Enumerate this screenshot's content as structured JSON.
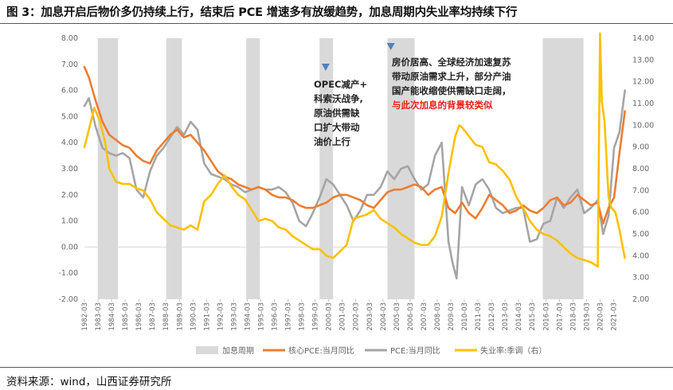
{
  "figure": {
    "title": "图 3：加息开启后物价多仍持续上行，结束后 PCE 增速多有放缓趋势，加息周期内失业率均持续下行",
    "source": "资料来源：wind，山西证券研究所"
  },
  "colors": {
    "hike_band": "#d9d9d9",
    "core_pce": "#ed7d31",
    "pce": "#a5a5a5",
    "unemployment": "#ffc000",
    "marker": "#4f81bd"
  },
  "chart_data": {
    "type": "line",
    "title": "",
    "xlabel": "",
    "ylabel": "",
    "ylim": [
      -2,
      8
    ],
    "y2lim": [
      2,
      14
    ],
    "xlim": [
      1982.17,
      2022.2
    ],
    "y_ticks": [
      "8.00",
      "7.00",
      "6.00",
      "5.00",
      "4.00",
      "3.00",
      "2.00",
      "1.00",
      "0.00",
      "-1.00",
      "-2.00"
    ],
    "y2_ticks": [
      "14.00",
      "13.00",
      "12.00",
      "11.00",
      "10.00",
      "9.00",
      "8.00",
      "7.00",
      "6.00",
      "5.00",
      "4.00",
      "3.00",
      "2.00"
    ],
    "x_ticks": [
      "1982-03",
      "1983-03",
      "1984-03",
      "1985-03",
      "1986-03",
      "1987-03",
      "1988-03",
      "1989-03",
      "1990-03",
      "1991-03",
      "1992-03",
      "1993-03",
      "1994-03",
      "1995-03",
      "1996-03",
      "1997-03",
      "1998-03",
      "1999-03",
      "2000-03",
      "2001-03",
      "2002-03",
      "2003-03",
      "2004-03",
      "2005-03",
      "2006-03",
      "2007-03",
      "2008-03",
      "2009-03",
      "2010-03",
      "2011-03",
      "2012-03",
      "2013-03",
      "2014-03",
      "2015-03",
      "2016-03",
      "2017-03",
      "2018-03",
      "2019-03",
      "2020-03",
      "2021-03"
    ],
    "hike_periods": [
      {
        "start": 1983.15,
        "end": 1984.65
      },
      {
        "start": 1988.2,
        "end": 1989.35
      },
      {
        "start": 1994.1,
        "end": 1995.1
      },
      {
        "start": 1999.5,
        "end": 2000.5
      },
      {
        "start": 2004.5,
        "end": 2006.5
      },
      {
        "start": 2015.95,
        "end": 2018.95
      }
    ],
    "legend": [
      "加息周期",
      "核心PCE:当月同比",
      "PCE:当月同比",
      "失业率:季调（右）"
    ],
    "legend_position": "bottom",
    "series": [
      {
        "name": "核心PCE:当月同比",
        "axis": "left",
        "x": [
          1982.17,
          1982.5,
          1983.0,
          1983.5,
          1984.0,
          1984.5,
          1985.0,
          1985.5,
          1986.0,
          1986.5,
          1987.0,
          1987.5,
          1988.0,
          1988.5,
          1989.0,
          1989.5,
          1990.0,
          1990.5,
          1991.0,
          1991.5,
          1992.0,
          1992.5,
          1993.0,
          1993.5,
          1994.0,
          1994.5,
          1995.0,
          1995.5,
          1996.0,
          1996.5,
          1997.0,
          1997.5,
          1998.0,
          1998.5,
          1999.0,
          1999.5,
          2000.0,
          2000.5,
          2001.0,
          2001.5,
          2002.0,
          2002.5,
          2003.0,
          2003.5,
          2004.0,
          2004.5,
          2005.0,
          2005.5,
          2006.0,
          2006.5,
          2007.0,
          2007.5,
          2008.0,
          2008.5,
          2009.0,
          2009.5,
          2010.0,
          2010.5,
          2011.0,
          2011.5,
          2012.0,
          2012.5,
          2013.0,
          2013.5,
          2014.0,
          2014.5,
          2015.0,
          2015.5,
          2016.0,
          2016.5,
          2017.0,
          2017.5,
          2018.0,
          2018.5,
          2019.0,
          2019.5,
          2020.0,
          2020.4,
          2020.8,
          2021.2,
          2021.6,
          2022.0
        ],
        "values": [
          6.9,
          6.5,
          5.6,
          4.8,
          4.3,
          4.1,
          3.9,
          3.8,
          3.5,
          3.3,
          3.2,
          3.7,
          4.0,
          4.3,
          4.5,
          4.2,
          4.3,
          4.0,
          3.7,
          3.3,
          2.9,
          2.7,
          2.6,
          2.4,
          2.3,
          2.2,
          2.3,
          2.2,
          2.0,
          1.9,
          1.9,
          1.8,
          1.6,
          1.5,
          1.5,
          1.6,
          1.7,
          1.9,
          2.0,
          2.0,
          1.9,
          1.8,
          1.6,
          1.5,
          1.8,
          2.1,
          2.2,
          2.2,
          2.3,
          2.4,
          2.3,
          2.0,
          2.2,
          2.3,
          1.5,
          1.3,
          1.7,
          1.3,
          1.1,
          1.5,
          2.0,
          1.8,
          1.6,
          1.3,
          1.4,
          1.6,
          1.4,
          1.3,
          1.5,
          1.8,
          1.9,
          1.6,
          1.7,
          2.0,
          1.8,
          1.6,
          1.7,
          0.9,
          1.5,
          1.9,
          3.6,
          5.2
        ]
      },
      {
        "name": "PCE:当月同比",
        "axis": "left",
        "x": [
          1982.17,
          1982.5,
          1983.0,
          1983.5,
          1984.0,
          1984.5,
          1985.0,
          1985.5,
          1986.0,
          1986.5,
          1987.0,
          1987.5,
          1988.0,
          1988.5,
          1989.0,
          1989.5,
          1990.0,
          1990.5,
          1991.0,
          1991.5,
          1992.0,
          1992.5,
          1993.0,
          1993.5,
          1994.0,
          1994.5,
          1995.0,
          1995.5,
          1996.0,
          1996.5,
          1997.0,
          1997.5,
          1998.0,
          1998.5,
          1999.0,
          1999.5,
          2000.0,
          2000.5,
          2001.0,
          2001.5,
          2002.0,
          2002.5,
          2003.0,
          2003.5,
          2004.0,
          2004.5,
          2005.0,
          2005.5,
          2006.0,
          2006.5,
          2007.0,
          2007.5,
          2008.0,
          2008.5,
          2009.0,
          2009.3,
          2009.6,
          2010.0,
          2010.5,
          2011.0,
          2011.5,
          2012.0,
          2012.5,
          2013.0,
          2013.5,
          2014.0,
          2014.5,
          2015.0,
          2015.5,
          2016.0,
          2016.5,
          2017.0,
          2017.5,
          2018.0,
          2018.5,
          2019.0,
          2019.5,
          2020.0,
          2020.4,
          2020.8,
          2021.2,
          2021.6,
          2022.0
        ],
        "values": [
          5.4,
          5.7,
          4.6,
          3.8,
          3.6,
          3.5,
          3.6,
          3.4,
          2.2,
          1.9,
          2.9,
          3.5,
          3.8,
          4.2,
          4.6,
          4.3,
          4.8,
          4.5,
          3.2,
          2.8,
          2.7,
          2.6,
          2.4,
          2.3,
          2.1,
          2.2,
          2.3,
          2.2,
          2.2,
          2.3,
          2.1,
          1.7,
          1.0,
          0.8,
          1.3,
          1.9,
          2.6,
          2.4,
          2.0,
          1.6,
          1.0,
          1.4,
          2.0,
          2.0,
          2.3,
          2.9,
          2.6,
          3.0,
          3.1,
          2.6,
          2.2,
          2.4,
          3.5,
          4.0,
          0.2,
          -0.6,
          -1.2,
          2.3,
          1.6,
          2.4,
          2.6,
          2.2,
          1.5,
          1.3,
          1.4,
          1.5,
          1.5,
          0.2,
          0.3,
          0.9,
          1.0,
          1.9,
          1.5,
          1.9,
          2.2,
          1.3,
          1.5,
          1.8,
          0.5,
          1.2,
          3.8,
          4.4,
          6.0
        ]
      },
      {
        "name": "失业率:季调（右）",
        "axis": "right",
        "x": [
          1982.17,
          1982.5,
          1982.9,
          1983.3,
          1983.7,
          1984.0,
          1984.5,
          1985.0,
          1985.5,
          1986.0,
          1986.5,
          1987.0,
          1987.5,
          1988.0,
          1988.5,
          1989.0,
          1989.5,
          1990.0,
          1990.5,
          1991.0,
          1991.5,
          1992.0,
          1992.5,
          1993.0,
          1993.5,
          1994.0,
          1994.5,
          1995.0,
          1995.5,
          1996.0,
          1996.5,
          1997.0,
          1997.5,
          1998.0,
          1998.5,
          1999.0,
          1999.5,
          2000.0,
          2000.5,
          2001.0,
          2001.5,
          2002.0,
          2002.5,
          2003.0,
          2003.5,
          2004.0,
          2004.5,
          2005.0,
          2005.5,
          2006.0,
          2006.5,
          2007.0,
          2007.5,
          2008.0,
          2008.5,
          2009.0,
          2009.5,
          2009.8,
          2010.0,
          2010.5,
          2011.0,
          2011.5,
          2012.0,
          2012.5,
          2013.0,
          2013.5,
          2014.0,
          2014.5,
          2015.0,
          2015.5,
          2016.0,
          2016.5,
          2017.0,
          2017.5,
          2018.0,
          2018.5,
          2019.0,
          2019.5,
          2020.0,
          2020.17,
          2020.3,
          2020.5,
          2020.8,
          2021.0,
          2021.3,
          2021.6,
          2021.9,
          2022.0
        ],
        "values": [
          9.0,
          9.8,
          10.8,
          10.2,
          9.2,
          8.0,
          7.4,
          7.3,
          7.3,
          7.1,
          7.0,
          6.6,
          6.0,
          5.7,
          5.4,
          5.3,
          5.2,
          5.4,
          5.2,
          6.5,
          6.8,
          7.3,
          7.7,
          7.2,
          6.8,
          6.6,
          6.1,
          5.6,
          5.7,
          5.6,
          5.3,
          5.2,
          4.9,
          4.7,
          4.5,
          4.3,
          4.3,
          4.0,
          3.9,
          4.2,
          4.5,
          5.7,
          5.8,
          5.9,
          6.1,
          5.7,
          5.5,
          5.3,
          5.0,
          4.8,
          4.6,
          4.5,
          4.5,
          4.9,
          5.8,
          7.8,
          9.5,
          10.0,
          9.9,
          9.5,
          9.1,
          9.0,
          8.3,
          8.2,
          7.9,
          7.5,
          6.7,
          6.2,
          5.6,
          5.2,
          5.0,
          4.9,
          4.7,
          4.4,
          4.1,
          3.9,
          3.8,
          3.7,
          3.5,
          14.7,
          11.1,
          10.2,
          6.7,
          6.2,
          6.0,
          5.2,
          4.2,
          3.9
        ]
      }
    ],
    "annotations": [
      {
        "marker_x": 1999.95,
        "lines": [
          "OPEC减产+",
          "科索沃战争,",
          "原油供需缺",
          "口扩大带动",
          "油价上行"
        ]
      },
      {
        "marker_x": 2004.75,
        "lines": [
          "房价居高、全球经济加速复苏",
          "带动原油需求上升，部分产油",
          "国产能收缩使供需缺口走阔，"
        ],
        "highlight": "与此次加息的背景较类似"
      }
    ]
  }
}
